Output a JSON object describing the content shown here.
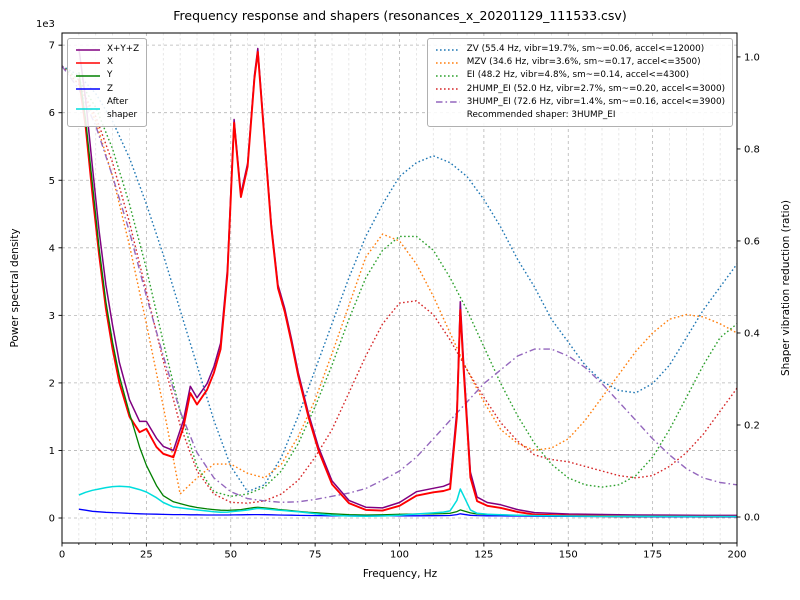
{
  "chart_data": {
    "type": "line",
    "title": "Frequency response and shapers (resonances_x_20201129_111533.csv)",
    "xlabel": "Frequency, Hz",
    "ylabel_left": "Power spectral density",
    "ylabel_right": "Shaper vibration reduction (ratio)",
    "y_left_offset": "1e3",
    "xlim": [
      0,
      200
    ],
    "ylim_left": [
      0,
      7000
    ],
    "ylim_right": [
      0.0,
      1.0
    ],
    "grid": true,
    "x_minor_step": 5,
    "x_major_ticks": [
      0,
      25,
      50,
      75,
      100,
      125,
      150,
      175,
      200
    ],
    "x_tick_labels": [
      "0",
      "25",
      "50",
      "75",
      "100",
      "125",
      "150",
      "175",
      "200"
    ],
    "y_left_tick_values": [
      0,
      1000,
      2000,
      3000,
      4000,
      5000,
      6000,
      7000
    ],
    "y_left_tick_labels": [
      "0",
      "1",
      "2",
      "3",
      "4",
      "5",
      "6",
      "7"
    ],
    "y_right_tick_values": [
      0.0,
      0.2,
      0.4,
      0.6,
      0.8,
      1.0
    ],
    "y_right_tick_labels": [
      "0.0",
      "0.2",
      "0.4",
      "0.6",
      "0.8",
      "1.0"
    ],
    "legend_positions": {
      "psd": "upper left",
      "shapers": "upper right"
    },
    "recommended_shaper": "3HUMP_EI",
    "legend_note": "Recommended shaper: 3HUMP_EI",
    "series": [
      {
        "name": "zv",
        "label": "ZV (55.4 Hz, vibr=19.7%, sm~=0.06, accel<=12000)",
        "legend": "shapers",
        "axis": "right",
        "color": "#1f77b4",
        "linestyle": "dotted",
        "width": 1.4,
        "x": [
          0,
          5,
          10,
          15,
          20,
          25,
          30,
          35,
          40,
          45,
          50,
          55,
          60,
          65,
          70,
          75,
          80,
          85,
          90,
          95,
          100,
          105,
          110,
          115,
          120,
          125,
          130,
          135,
          140,
          145,
          150,
          155,
          160,
          165,
          170,
          175,
          180,
          185,
          190,
          195,
          200
        ],
        "y": [
          0.98,
          0.96,
          0.92,
          0.86,
          0.78,
          0.68,
          0.57,
          0.45,
          0.33,
          0.21,
          0.11,
          0.055,
          0.07,
          0.13,
          0.22,
          0.32,
          0.42,
          0.52,
          0.61,
          0.68,
          0.74,
          0.77,
          0.785,
          0.77,
          0.74,
          0.69,
          0.63,
          0.56,
          0.5,
          0.43,
          0.38,
          0.33,
          0.295,
          0.275,
          0.27,
          0.29,
          0.33,
          0.39,
          0.45,
          0.5,
          0.55
        ]
      },
      {
        "name": "mzv",
        "label": "MZV (34.6 Hz, vibr=3.6%, sm~=0.17, accel<=3500)",
        "legend": "shapers",
        "axis": "right",
        "color": "#ff7f0e",
        "linestyle": "dotted",
        "width": 1.4,
        "x": [
          0,
          5,
          10,
          15,
          20,
          25,
          30,
          35,
          40,
          45,
          50,
          55,
          60,
          65,
          70,
          75,
          80,
          85,
          90,
          95,
          100,
          105,
          110,
          115,
          120,
          125,
          130,
          135,
          140,
          145,
          150,
          155,
          160,
          165,
          170,
          175,
          180,
          185,
          190,
          195,
          200
        ],
        "y": [
          0.98,
          0.94,
          0.86,
          0.74,
          0.59,
          0.42,
          0.24,
          0.05,
          0.085,
          0.115,
          0.115,
          0.095,
          0.085,
          0.115,
          0.175,
          0.255,
          0.355,
          0.46,
          0.565,
          0.615,
          0.6,
          0.55,
          0.48,
          0.4,
          0.32,
          0.25,
          0.19,
          0.16,
          0.145,
          0.15,
          0.17,
          0.21,
          0.26,
          0.31,
          0.36,
          0.4,
          0.43,
          0.44,
          0.435,
          0.42,
          0.4
        ]
      },
      {
        "name": "ei",
        "label": "EI (48.2 Hz, vibr=4.8%, sm~=0.14, accel<=4300)",
        "legend": "shapers",
        "axis": "right",
        "color": "#2ca02c",
        "linestyle": "dotted",
        "width": 1.4,
        "x": [
          0,
          5,
          10,
          15,
          20,
          25,
          30,
          35,
          40,
          45,
          50,
          55,
          60,
          65,
          70,
          75,
          80,
          85,
          90,
          95,
          100,
          105,
          110,
          115,
          120,
          125,
          130,
          135,
          140,
          145,
          150,
          155,
          160,
          165,
          170,
          175,
          180,
          185,
          190,
          195,
          200
        ],
        "y": [
          0.98,
          0.95,
          0.89,
          0.8,
          0.68,
          0.54,
          0.38,
          0.23,
          0.11,
          0.055,
          0.045,
          0.05,
          0.065,
          0.1,
          0.16,
          0.24,
          0.33,
          0.43,
          0.52,
          0.58,
          0.61,
          0.61,
          0.58,
          0.52,
          0.45,
          0.37,
          0.29,
          0.22,
          0.16,
          0.115,
          0.085,
          0.07,
          0.065,
          0.07,
          0.09,
          0.13,
          0.19,
          0.26,
          0.33,
          0.39,
          0.42
        ]
      },
      {
        "name": "2hump_ei",
        "label": "2HUMP_EI (52.0 Hz, vibr=2.7%, sm~=0.20, accel<=3000)",
        "legend": "shapers",
        "axis": "right",
        "color": "#d62728",
        "linestyle": "dotted",
        "width": 1.4,
        "x": [
          0,
          5,
          10,
          15,
          20,
          25,
          30,
          35,
          40,
          45,
          50,
          55,
          60,
          65,
          70,
          75,
          80,
          85,
          90,
          95,
          100,
          105,
          110,
          115,
          120,
          125,
          130,
          135,
          140,
          145,
          150,
          155,
          160,
          165,
          170,
          175,
          180,
          185,
          190,
          195,
          200
        ],
        "y": [
          0.98,
          0.94,
          0.87,
          0.77,
          0.64,
          0.49,
          0.34,
          0.2,
          0.1,
          0.05,
          0.032,
          0.03,
          0.035,
          0.05,
          0.08,
          0.13,
          0.19,
          0.27,
          0.35,
          0.42,
          0.465,
          0.47,
          0.44,
          0.385,
          0.32,
          0.26,
          0.205,
          0.165,
          0.135,
          0.125,
          0.12,
          0.11,
          0.1,
          0.09,
          0.085,
          0.09,
          0.11,
          0.14,
          0.18,
          0.23,
          0.28
        ]
      },
      {
        "name": "3hump_ei",
        "label": "3HUMP_EI (72.6 Hz, vibr=1.4%, sm~=0.16, accel<=3900)",
        "legend": "shapers",
        "axis": "right",
        "color": "#9467bd",
        "linestyle": "dashdot",
        "width": 1.4,
        "x": [
          0,
          5,
          10,
          15,
          20,
          25,
          30,
          35,
          40,
          45,
          50,
          55,
          60,
          65,
          70,
          75,
          80,
          85,
          90,
          95,
          100,
          105,
          110,
          115,
          120,
          125,
          130,
          135,
          140,
          145,
          150,
          155,
          160,
          165,
          170,
          175,
          180,
          185,
          190,
          195,
          200
        ],
        "y": [
          0.98,
          0.93,
          0.85,
          0.74,
          0.62,
          0.48,
          0.35,
          0.23,
          0.14,
          0.085,
          0.055,
          0.04,
          0.035,
          0.032,
          0.033,
          0.038,
          0.045,
          0.052,
          0.062,
          0.08,
          0.1,
          0.13,
          0.17,
          0.21,
          0.25,
          0.29,
          0.32,
          0.35,
          0.365,
          0.365,
          0.35,
          0.325,
          0.29,
          0.25,
          0.21,
          0.17,
          0.135,
          0.105,
          0.085,
          0.075,
          0.07
        ]
      },
      {
        "name": "xyz_sum",
        "label": "X+Y+Z",
        "legend": "psd",
        "axis": "left",
        "color": "#800080",
        "linestyle": "solid",
        "width": 1.5,
        "x": [
          5,
          7,
          9,
          11,
          13,
          15,
          17,
          20,
          23,
          25,
          28,
          30,
          33,
          36,
          38,
          40,
          43,
          45,
          47,
          49,
          51,
          53,
          55,
          57,
          58,
          60,
          62,
          64,
          66,
          68,
          70,
          73,
          76,
          80,
          85,
          90,
          95,
          100,
          105,
          110,
          113,
          115,
          117,
          118,
          119,
          121,
          123,
          126,
          130,
          135,
          140,
          150,
          160,
          170,
          180,
          190,
          200
        ],
        "y": [
          6950,
          6200,
          5200,
          4250,
          3450,
          2850,
          2300,
          1750,
          1430,
          1430,
          1180,
          1060,
          1000,
          1450,
          1950,
          1780,
          1990,
          2240,
          2590,
          3680,
          5900,
          4800,
          5250,
          6550,
          6950,
          5650,
          4350,
          3450,
          3100,
          2650,
          2150,
          1550,
          1050,
          550,
          260,
          160,
          150,
          230,
          390,
          440,
          470,
          510,
          1600,
          3200,
          2300,
          680,
          310,
          230,
          195,
          125,
          80,
          60,
          52,
          45,
          43,
          38,
          38
        ]
      },
      {
        "name": "x",
        "label": "X",
        "legend": "psd",
        "axis": "left",
        "color": "#ff0000",
        "linestyle": "solid",
        "width": 1.9,
        "x": [
          5,
          7,
          9,
          11,
          13,
          15,
          17,
          20,
          23,
          25,
          28,
          30,
          33,
          36,
          38,
          40,
          43,
          45,
          47,
          49,
          51,
          53,
          55,
          57,
          58,
          60,
          62,
          64,
          66,
          68,
          70,
          73,
          76,
          80,
          85,
          90,
          95,
          100,
          105,
          110,
          113,
          115,
          117,
          118,
          119,
          121,
          123,
          126,
          130,
          135,
          140,
          150,
          160,
          170,
          180,
          190,
          200
        ],
        "y": [
          6500,
          5800,
          4800,
          3900,
          3100,
          2500,
          2000,
          1500,
          1270,
          1320,
          1050,
          950,
          900,
          1350,
          1850,
          1680,
          1900,
          2150,
          2500,
          3600,
          5850,
          4750,
          5200,
          6500,
          6900,
          5600,
          4300,
          3400,
          3050,
          2600,
          2100,
          1500,
          1000,
          500,
          220,
          120,
          110,
          180,
          330,
          380,
          400,
          430,
          1500,
          3080,
          2200,
          600,
          250,
          180,
          150,
          90,
          50,
          35,
          30,
          25,
          25,
          20,
          20
        ]
      },
      {
        "name": "y",
        "label": "Y",
        "legend": "psd",
        "axis": "left",
        "color": "#008000",
        "linestyle": "solid",
        "width": 1.3,
        "x": [
          5,
          7,
          9,
          11,
          13,
          15,
          17,
          20,
          23,
          25,
          28,
          30,
          33,
          36,
          38,
          40,
          43,
          45,
          47,
          49,
          51,
          53,
          55,
          57,
          58,
          60,
          62,
          64,
          66,
          68,
          70,
          73,
          76,
          80,
          85,
          90,
          95,
          100,
          105,
          110,
          113,
          115,
          117,
          118,
          119,
          121,
          123,
          126,
          130,
          135,
          140,
          150,
          160,
          170,
          180,
          190,
          200
        ],
        "y": [
          6600,
          5900,
          4950,
          4000,
          3200,
          2600,
          2100,
          1550,
          1050,
          780,
          480,
          330,
          240,
          200,
          175,
          155,
          135,
          125,
          115,
          112,
          118,
          125,
          140,
          155,
          158,
          150,
          140,
          128,
          118,
          108,
          98,
          85,
          75,
          62,
          50,
          45,
          48,
          55,
          60,
          62,
          65,
          70,
          95,
          120,
          105,
          75,
          60,
          52,
          46,
          38,
          32,
          26,
          23,
          20,
          19,
          17,
          16
        ]
      },
      {
        "name": "z",
        "label": "Z",
        "legend": "psd",
        "axis": "left",
        "color": "#0000ff",
        "linestyle": "solid",
        "width": 1.3,
        "x": [
          5,
          7,
          9,
          11,
          13,
          15,
          17,
          20,
          23,
          25,
          28,
          30,
          33,
          36,
          38,
          40,
          43,
          45,
          47,
          49,
          51,
          53,
          55,
          57,
          58,
          60,
          62,
          64,
          66,
          68,
          70,
          73,
          76,
          80,
          85,
          90,
          95,
          100,
          105,
          110,
          113,
          115,
          117,
          118,
          119,
          121,
          123,
          126,
          130,
          135,
          140,
          150,
          160,
          170,
          180,
          190,
          200
        ],
        "y": [
          130,
          115,
          100,
          92,
          85,
          80,
          75,
          68,
          62,
          60,
          56,
          53,
          50,
          50,
          48,
          47,
          45,
          44,
          44,
          44,
          46,
          47,
          49,
          51,
          51,
          49,
          47,
          45,
          43,
          41,
          39,
          37,
          35,
          33,
          31,
          30,
          31,
          32,
          33,
          34,
          35,
          37,
          50,
          62,
          55,
          40,
          36,
          33,
          31,
          29,
          27,
          24,
          22,
          21,
          20,
          19,
          18
        ]
      },
      {
        "name": "after_shaper",
        "label": "After\nshaper",
        "legend": "psd",
        "axis": "left",
        "color": "#00dddd",
        "linestyle": "solid",
        "width": 1.5,
        "x": [
          5,
          7,
          9,
          11,
          13,
          15,
          17,
          20,
          23,
          25,
          28,
          30,
          33,
          36,
          38,
          40,
          43,
          45,
          47,
          49,
          51,
          53,
          55,
          57,
          58,
          60,
          62,
          64,
          66,
          68,
          70,
          73,
          76,
          80,
          85,
          90,
          95,
          100,
          105,
          110,
          113,
          115,
          117,
          118,
          119,
          121,
          123,
          126,
          130,
          135,
          140,
          150,
          160,
          170,
          180,
          190,
          200
        ],
        "y": [
          340,
          380,
          410,
          430,
          450,
          465,
          470,
          460,
          420,
          385,
          300,
          230,
          165,
          145,
          132,
          120,
          103,
          92,
          86,
          88,
          98,
          108,
          118,
          135,
          142,
          135,
          126,
          117,
          110,
          100,
          92,
          75,
          60,
          42,
          30,
          26,
          30,
          42,
          60,
          75,
          88,
          105,
          260,
          430,
          330,
          120,
          70,
          55,
          48,
          40,
          35,
          30,
          27,
          25,
          24,
          22,
          22
        ]
      }
    ]
  }
}
